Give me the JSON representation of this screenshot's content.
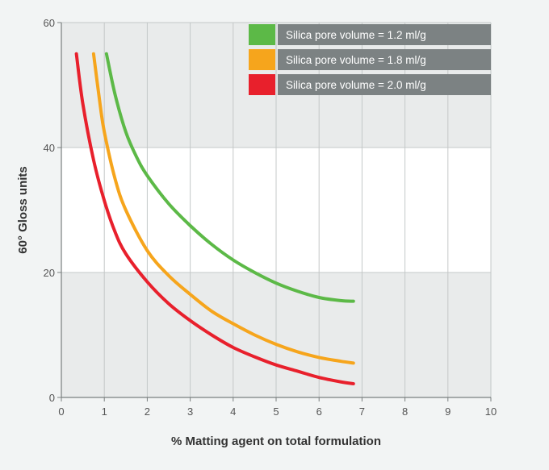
{
  "chart_data": {
    "type": "line",
    "xlabel": "% Matting agent on total formulation",
    "ylabel": "60° Gloss units",
    "xlim": [
      0,
      10
    ],
    "ylim": [
      0,
      60
    ],
    "x_ticks": [
      "0",
      "1",
      "2",
      "3",
      "4",
      "5",
      "6",
      "7",
      "8",
      "9",
      "10"
    ],
    "y_ticks": [
      "0",
      "20",
      "40",
      "60"
    ],
    "grid": true,
    "legend_position": "top-right",
    "highlight_band": {
      "from": 20,
      "to": 40,
      "color": "#ffffff"
    },
    "series": [
      {
        "name": "Silica pore volume = 1.2 ml/g",
        "color": "#5cb947",
        "x": [
          1.05,
          1.25,
          1.5,
          1.75,
          2.0,
          2.5,
          3.0,
          3.5,
          4.0,
          4.5,
          5.0,
          5.5,
          6.0,
          6.5,
          6.8
        ],
        "y": [
          55,
          48.5,
          42.5,
          38.5,
          35.5,
          31.0,
          27.5,
          24.5,
          22.0,
          20.0,
          18.3,
          17.0,
          16.0,
          15.5,
          15.4
        ]
      },
      {
        "name": "Silica pore volume = 1.8 ml/g",
        "color": "#f6a51c",
        "x": [
          0.75,
          0.9,
          1.0,
          1.25,
          1.5,
          2.0,
          2.5,
          3.0,
          3.5,
          4.0,
          4.5,
          5.0,
          5.5,
          6.0,
          6.5,
          6.8
        ],
        "y": [
          55,
          47.0,
          42.5,
          35.0,
          30.0,
          23.5,
          19.5,
          16.5,
          13.8,
          11.8,
          10.0,
          8.5,
          7.3,
          6.4,
          5.8,
          5.5
        ]
      },
      {
        "name": "Silica pore volume = 2.0 ml/g",
        "color": "#e8202c",
        "x": [
          0.35,
          0.5,
          0.75,
          1.0,
          1.25,
          1.5,
          2.0,
          2.5,
          3.0,
          3.5,
          4.0,
          4.5,
          5.0,
          5.5,
          6.0,
          6.5,
          6.8
        ],
        "y": [
          55,
          47.0,
          38.0,
          31.5,
          26.5,
          23.0,
          18.5,
          15.0,
          12.3,
          10.0,
          8.0,
          6.5,
          5.2,
          4.2,
          3.2,
          2.5,
          2.2
        ]
      }
    ]
  }
}
